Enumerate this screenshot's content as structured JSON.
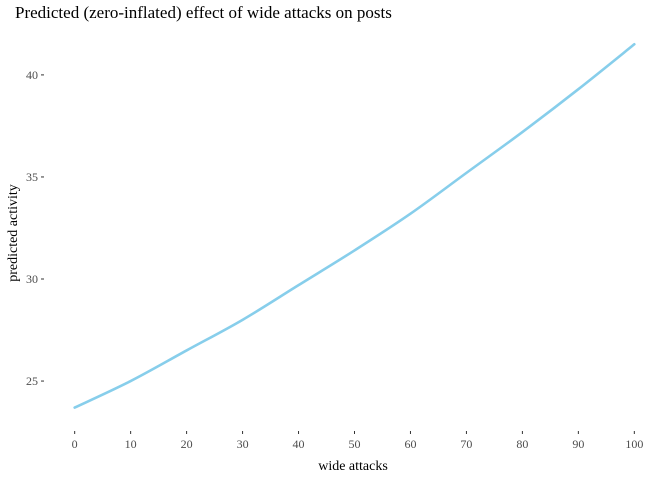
{
  "chart_data": {
    "type": "line",
    "title": "Predicted (zero-inflated) effect of wide attacks on posts",
    "xlabel": "wide attacks",
    "ylabel": "predicted activity",
    "xlim": [
      0,
      100
    ],
    "ylim": [
      22.7,
      42.2
    ],
    "xticks": [
      0,
      10,
      20,
      30,
      40,
      50,
      60,
      70,
      80,
      90,
      100
    ],
    "yticks": [
      25,
      30,
      35,
      40
    ],
    "grid": false,
    "legend": "none",
    "line_color": "#87ceeb",
    "series": [
      {
        "x": [
          0,
          10,
          20,
          30,
          40,
          50,
          60,
          70,
          80,
          90,
          100
        ],
        "values": [
          23.7,
          25.0,
          26.5,
          28.0,
          29.7,
          31.4,
          33.2,
          35.2,
          37.2,
          39.3,
          41.5
        ]
      }
    ]
  }
}
